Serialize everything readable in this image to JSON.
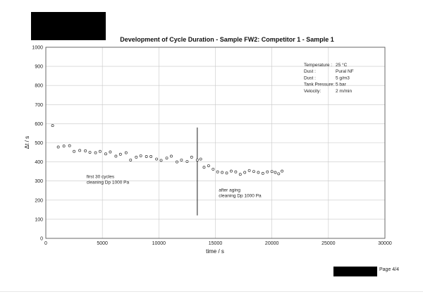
{
  "page": {
    "page_label": "Page 4/4"
  },
  "chart_data": {
    "type": "scatter",
    "title": "Development of Cycle Duration - Sample FW2: Competitor 1 - Sample 1",
    "xlabel": "time / s",
    "ylabel": "Δt / s",
    "xlim": [
      0,
      30000
    ],
    "ylim": [
      0,
      1000
    ],
    "x_ticks": [
      "0",
      "5000",
      "10000",
      "15000",
      "20000",
      "25000",
      "30000"
    ],
    "y_ticks": [
      "0",
      "100",
      "200",
      "300",
      "400",
      "500",
      "600",
      "700",
      "800",
      "900",
      "1000"
    ],
    "grid": true,
    "marker": "hollow circle",
    "x": [
      600,
      1100,
      1600,
      2100,
      2500,
      3000,
      3500,
      3900,
      4400,
      4800,
      5300,
      5700,
      6200,
      6600,
      7100,
      7500,
      8000,
      8400,
      8900,
      9300,
      9800,
      10200,
      10700,
      11100,
      11600,
      12000,
      12500,
      12900,
      13400,
      13700,
      14000,
      14400,
      14800,
      15200,
      15600,
      16000,
      16400,
      16800,
      17200,
      17600,
      18000,
      18400,
      18800,
      19200,
      19600,
      20000,
      20300,
      20600,
      20900
    ],
    "y": [
      590,
      478,
      483,
      485,
      455,
      460,
      458,
      450,
      448,
      455,
      442,
      452,
      430,
      440,
      448,
      410,
      425,
      432,
      428,
      428,
      415,
      408,
      420,
      430,
      400,
      410,
      402,
      425,
      410,
      415,
      372,
      380,
      362,
      348,
      345,
      342,
      352,
      348,
      335,
      345,
      355,
      350,
      345,
      340,
      348,
      350,
      345,
      338,
      352
    ],
    "vertical_marker_line": {
      "x": 13400,
      "y_from": 120,
      "y_to": 580
    },
    "annotations": [
      {
        "lines": [
          "first 30 cycles",
          "cleaning Dp 1000 Pa"
        ],
        "x": 3600,
        "y": 300
      },
      {
        "lines": [
          "after aging",
          "cleaning Dp 1000 Pa"
        ],
        "x": 15300,
        "y": 230
      }
    ],
    "info_box": [
      {
        "label": "Temperature :",
        "value": "25 °C"
      },
      {
        "label": "Dust :",
        "value": "Pural NF"
      },
      {
        "label": "Dust :",
        "value": "5 g/m3"
      },
      {
        "label": "Tank Pressure:",
        "value": "5 bar"
      },
      {
        "label": "Velocity:",
        "value": "2 m/min"
      }
    ]
  },
  "colors": {
    "marker_stroke": "#333333",
    "grid": "#c8c8c8",
    "frame": "#444444",
    "redaction": "#000000"
  }
}
